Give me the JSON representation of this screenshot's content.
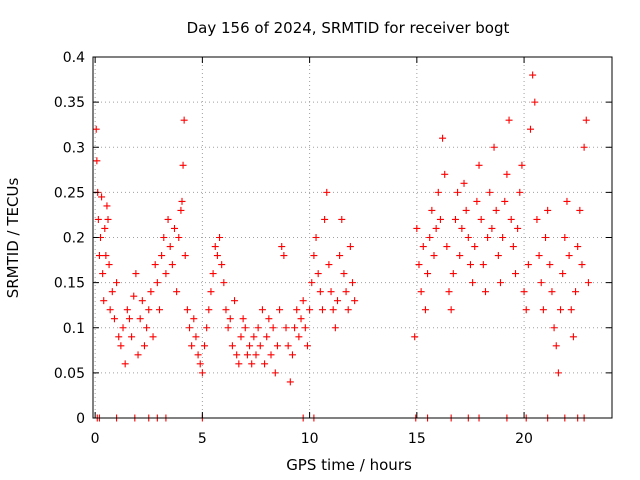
{
  "chart_data": {
    "type": "scatter",
    "title": "Day 156 of 2024, SRMTID for receiver bogt",
    "xlabel": "GPS time / hours",
    "ylabel": "SRMTID / TECUs",
    "xlim": [
      -0.1,
      24.1
    ],
    "ylim": [
      0,
      0.4
    ],
    "x_ticks": [
      0,
      5,
      10,
      15,
      20
    ],
    "x_tick_labels": [
      "0",
      "5",
      "10",
      "15",
      "20"
    ],
    "y_ticks": [
      0,
      0.05,
      0.1,
      0.15,
      0.2,
      0.25,
      0.3,
      0.35,
      0.4
    ],
    "y_tick_labels": [
      "0",
      "0.05",
      "0.1",
      "0.15",
      "0.2",
      "0.25",
      "0.3",
      "0.35",
      "0.4"
    ],
    "grid": true,
    "marker": "plus",
    "color": "#ff0000",
    "series": [
      {
        "name": "SRMTID",
        "points": [
          [
            0.05,
            0.32
          ],
          [
            0.08,
            0.285
          ],
          [
            0.12,
            0.25
          ],
          [
            0.15,
            0.22
          ],
          [
            0.2,
            0.18
          ],
          [
            0.25,
            0.2
          ],
          [
            0.3,
            0.245
          ],
          [
            0.35,
            0.16
          ],
          [
            0.4,
            0.13
          ],
          [
            0.45,
            0.21
          ],
          [
            0.5,
            0.18
          ],
          [
            0.55,
            0.235
          ],
          [
            0.6,
            0.22
          ],
          [
            0.65,
            0.17
          ],
          [
            0.7,
            0.12
          ],
          [
            0.8,
            0.14
          ],
          [
            0.9,
            0.11
          ],
          [
            1.0,
            0.15
          ],
          [
            1.1,
            0.09
          ],
          [
            1.2,
            0.08
          ],
          [
            1.3,
            0.1
          ],
          [
            1.4,
            0.06
          ],
          [
            1.5,
            0.12
          ],
          [
            1.6,
            0.11
          ],
          [
            1.7,
            0.09
          ],
          [
            1.8,
            0.135
          ],
          [
            1.9,
            0.16
          ],
          [
            2.0,
            0.07
          ],
          [
            2.1,
            0.11
          ],
          [
            2.2,
            0.13
          ],
          [
            2.3,
            0.08
          ],
          [
            2.4,
            0.1
          ],
          [
            2.5,
            0.12
          ],
          [
            2.6,
            0.14
          ],
          [
            2.7,
            0.09
          ],
          [
            2.8,
            0.17
          ],
          [
            2.9,
            0.15
          ],
          [
            3.0,
            0.12
          ],
          [
            3.1,
            0.18
          ],
          [
            3.2,
            0.2
          ],
          [
            3.3,
            0.16
          ],
          [
            3.4,
            0.22
          ],
          [
            3.5,
            0.19
          ],
          [
            3.6,
            0.17
          ],
          [
            3.7,
            0.21
          ],
          [
            3.8,
            0.14
          ],
          [
            3.9,
            0.2
          ],
          [
            4.0,
            0.23
          ],
          [
            4.05,
            0.24
          ],
          [
            4.1,
            0.28
          ],
          [
            4.15,
            0.33
          ],
          [
            4.2,
            0.18
          ],
          [
            4.3,
            0.12
          ],
          [
            4.4,
            0.1
          ],
          [
            4.5,
            0.08
          ],
          [
            4.6,
            0.11
          ],
          [
            4.7,
            0.09
          ],
          [
            4.8,
            0.07
          ],
          [
            4.9,
            0.06
          ],
          [
            5.0,
            0.05
          ],
          [
            5.1,
            0.08
          ],
          [
            5.2,
            0.1
          ],
          [
            5.3,
            0.12
          ],
          [
            5.4,
            0.14
          ],
          [
            5.5,
            0.16
          ],
          [
            5.6,
            0.19
          ],
          [
            5.7,
            0.18
          ],
          [
            5.8,
            0.2
          ],
          [
            5.9,
            0.17
          ],
          [
            6.0,
            0.15
          ],
          [
            6.1,
            0.12
          ],
          [
            6.2,
            0.1
          ],
          [
            6.3,
            0.11
          ],
          [
            6.4,
            0.08
          ],
          [
            6.5,
            0.13
          ],
          [
            6.6,
            0.07
          ],
          [
            6.7,
            0.06
          ],
          [
            6.8,
            0.09
          ],
          [
            6.9,
            0.11
          ],
          [
            7.0,
            0.1
          ],
          [
            7.1,
            0.07
          ],
          [
            7.2,
            0.08
          ],
          [
            7.3,
            0.06
          ],
          [
            7.4,
            0.09
          ],
          [
            7.5,
            0.07
          ],
          [
            7.6,
            0.1
          ],
          [
            7.7,
            0.08
          ],
          [
            7.8,
            0.12
          ],
          [
            7.9,
            0.06
          ],
          [
            8.0,
            0.09
          ],
          [
            8.1,
            0.11
          ],
          [
            8.2,
            0.07
          ],
          [
            8.3,
            0.1
          ],
          [
            8.4,
            0.05
          ],
          [
            8.5,
            0.08
          ],
          [
            8.6,
            0.12
          ],
          [
            8.7,
            0.19
          ],
          [
            8.8,
            0.18
          ],
          [
            8.9,
            0.1
          ],
          [
            9.0,
            0.08
          ],
          [
            9.1,
            0.04
          ],
          [
            9.2,
            0.07
          ],
          [
            9.3,
            0.1
          ],
          [
            9.4,
            0.12
          ],
          [
            9.5,
            0.09
          ],
          [
            9.6,
            0.11
          ],
          [
            9.7,
            0.13
          ],
          [
            9.8,
            0.1
          ],
          [
            9.9,
            0.08
          ],
          [
            10.0,
            0.12
          ],
          [
            10.1,
            0.15
          ],
          [
            10.2,
            0.18
          ],
          [
            10.3,
            0.2
          ],
          [
            10.4,
            0.16
          ],
          [
            10.5,
            0.14
          ],
          [
            10.6,
            0.12
          ],
          [
            10.7,
            0.22
          ],
          [
            10.8,
            0.25
          ],
          [
            10.9,
            0.17
          ],
          [
            11.0,
            0.14
          ],
          [
            11.1,
            0.12
          ],
          [
            11.2,
            0.1
          ],
          [
            11.3,
            0.13
          ],
          [
            11.4,
            0.18
          ],
          [
            11.5,
            0.22
          ],
          [
            11.6,
            0.16
          ],
          [
            11.7,
            0.14
          ],
          [
            11.8,
            0.12
          ],
          [
            11.9,
            0.19
          ],
          [
            12.0,
            0.15
          ],
          [
            12.1,
            0.13
          ],
          [
            14.9,
            0.09
          ],
          [
            15.0,
            0.21
          ],
          [
            15.1,
            0.17
          ],
          [
            15.2,
            0.14
          ],
          [
            15.3,
            0.19
          ],
          [
            15.4,
            0.12
          ],
          [
            15.5,
            0.16
          ],
          [
            15.6,
            0.2
          ],
          [
            15.7,
            0.23
          ],
          [
            15.8,
            0.18
          ],
          [
            15.9,
            0.21
          ],
          [
            16.0,
            0.25
          ],
          [
            16.1,
            0.22
          ],
          [
            16.2,
            0.31
          ],
          [
            16.3,
            0.27
          ],
          [
            16.4,
            0.19
          ],
          [
            16.5,
            0.14
          ],
          [
            16.6,
            0.12
          ],
          [
            16.7,
            0.16
          ],
          [
            16.8,
            0.22
          ],
          [
            16.9,
            0.25
          ],
          [
            17.0,
            0.18
          ],
          [
            17.1,
            0.21
          ],
          [
            17.2,
            0.26
          ],
          [
            17.3,
            0.23
          ],
          [
            17.4,
            0.2
          ],
          [
            17.5,
            0.17
          ],
          [
            17.6,
            0.15
          ],
          [
            17.7,
            0.19
          ],
          [
            17.8,
            0.24
          ],
          [
            17.9,
            0.28
          ],
          [
            18.0,
            0.22
          ],
          [
            18.1,
            0.17
          ],
          [
            18.2,
            0.14
          ],
          [
            18.3,
            0.2
          ],
          [
            18.4,
            0.25
          ],
          [
            18.5,
            0.21
          ],
          [
            18.6,
            0.3
          ],
          [
            18.7,
            0.23
          ],
          [
            18.8,
            0.18
          ],
          [
            18.9,
            0.15
          ],
          [
            19.0,
            0.2
          ],
          [
            19.1,
            0.24
          ],
          [
            19.2,
            0.27
          ],
          [
            19.3,
            0.33
          ],
          [
            19.4,
            0.22
          ],
          [
            19.5,
            0.19
          ],
          [
            19.6,
            0.16
          ],
          [
            19.7,
            0.21
          ],
          [
            19.8,
            0.25
          ],
          [
            19.9,
            0.28
          ],
          [
            20.0,
            0.14
          ],
          [
            20.1,
            0.12
          ],
          [
            20.2,
            0.17
          ],
          [
            20.3,
            0.32
          ],
          [
            20.4,
            0.38
          ],
          [
            20.5,
            0.35
          ],
          [
            20.6,
            0.22
          ],
          [
            20.7,
            0.18
          ],
          [
            20.8,
            0.15
          ],
          [
            20.9,
            0.12
          ],
          [
            21.0,
            0.2
          ],
          [
            21.1,
            0.23
          ],
          [
            21.2,
            0.17
          ],
          [
            21.3,
            0.14
          ],
          [
            21.4,
            0.1
          ],
          [
            21.5,
            0.08
          ],
          [
            21.6,
            0.05
          ],
          [
            21.7,
            0.12
          ],
          [
            21.8,
            0.16
          ],
          [
            21.9,
            0.2
          ],
          [
            22.0,
            0.24
          ],
          [
            22.1,
            0.18
          ],
          [
            22.2,
            0.12
          ],
          [
            22.3,
            0.09
          ],
          [
            22.4,
            0.14
          ],
          [
            22.5,
            0.19
          ],
          [
            22.6,
            0.23
          ],
          [
            22.7,
            0.17
          ],
          [
            22.8,
            0.3
          ],
          [
            22.9,
            0.33
          ],
          [
            23.0,
            0.15
          ],
          [
            0.1,
            0
          ],
          [
            0.2,
            0
          ],
          [
            1.0,
            0
          ],
          [
            1.85,
            0
          ],
          [
            2.5,
            0
          ],
          [
            2.9,
            0
          ],
          [
            3.3,
            0
          ],
          [
            5.0,
            0
          ],
          [
            9.7,
            0
          ],
          [
            10.2,
            0
          ],
          [
            14.95,
            0
          ],
          [
            15.5,
            0
          ],
          [
            16.6,
            0
          ],
          [
            17.4,
            0
          ],
          [
            17.9,
            0
          ],
          [
            19.2,
            0
          ],
          [
            20.1,
            0
          ],
          [
            21.1,
            0
          ],
          [
            21.9,
            0
          ],
          [
            22.5,
            0
          ],
          [
            22.8,
            0
          ]
        ]
      }
    ]
  }
}
